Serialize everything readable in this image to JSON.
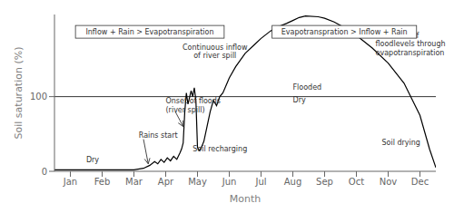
{
  "chart_data": {
    "type": "line",
    "xlabel": "Month",
    "ylabel": "Soil saturation (%)",
    "x": [
      -0.5,
      0.0,
      0.5,
      1.0,
      1.5,
      2.0,
      2.3,
      2.5,
      2.65,
      2.75,
      2.85,
      2.95,
      3.05,
      3.15,
      3.25,
      3.35,
      3.45,
      3.5,
      3.55,
      3.6,
      3.65,
      3.7,
      3.8,
      3.85,
      3.9,
      3.95,
      4.0,
      4.05,
      4.1,
      4.15,
      4.2,
      4.3,
      4.4,
      4.5,
      4.6,
      4.7,
      4.8,
      4.9,
      5.0,
      5.2,
      5.5,
      5.8,
      6.0,
      6.3,
      6.5,
      6.8,
      7.0,
      7.2,
      7.4,
      7.8,
      8.0,
      8.3,
      8.6,
      9.0,
      9.5,
      10.0,
      10.5,
      11.0,
      11.3,
      11.5
    ],
    "values": [
      2,
      2,
      2,
      2,
      2,
      2,
      4,
      8,
      13,
      10,
      16,
      12,
      18,
      14,
      20,
      16,
      25,
      30,
      38,
      80,
      105,
      90,
      108,
      100,
      112,
      95,
      32,
      28,
      30,
      35,
      40,
      60,
      80,
      95,
      88,
      100,
      105,
      115,
      125,
      140,
      158,
      170,
      178,
      188,
      193,
      198,
      202,
      206,
      208,
      207,
      205,
      200,
      193,
      182,
      165,
      145,
      118,
      75,
      30,
      5
    ],
    "color": "#000000",
    "reference_line": 100,
    "xlim": [
      -0.5,
      11.5
    ],
    "xticks": [
      {
        "value": 0,
        "label": "Jan"
      },
      {
        "value": 1,
        "label": "Feb"
      },
      {
        "value": 2,
        "label": "Mar"
      },
      {
        "value": 3,
        "label": "Apr"
      },
      {
        "value": 4,
        "label": "May"
      },
      {
        "value": 5,
        "label": "Jun"
      },
      {
        "value": 6,
        "label": "Jul"
      },
      {
        "value": 7,
        "label": "Aug"
      },
      {
        "value": 8,
        "label": "Sep"
      },
      {
        "value": 9,
        "label": "Oct"
      },
      {
        "value": 10,
        "label": "Nov"
      },
      {
        "value": 11,
        "label": "Dec"
      }
    ],
    "ylim": [
      0,
      210
    ],
    "yticks": [
      0,
      100
    ],
    "grid": false,
    "annotations": [
      {
        "text": "Dry",
        "x": 0.7,
        "y": 15
      },
      {
        "text": "Rains start",
        "x": 2.15,
        "y": 48
      },
      {
        "text": "Onset of floods\n(river spill)",
        "x": 3.0,
        "y": 88
      },
      {
        "text": "Continuous inflow\nof river spill",
        "x": 4.55,
        "y": 160
      },
      {
        "text": "Soil recharging",
        "x": 3.85,
        "y": 30
      },
      {
        "text": "Flooded",
        "x": 7.0,
        "y": 112
      },
      {
        "text": "Dry",
        "x": 7.0,
        "y": 95
      },
      {
        "text": "Decrease of\nfloodlevels through\nevapotranspiration",
        "x": 9.6,
        "y": 170
      },
      {
        "text": "Soil drying",
        "x": 9.8,
        "y": 38
      },
      {
        "text": "Inflow + Rain > Evapotranspiration"
      },
      {
        "text": "Evapotranspration > Inflow + Rain"
      }
    ]
  }
}
